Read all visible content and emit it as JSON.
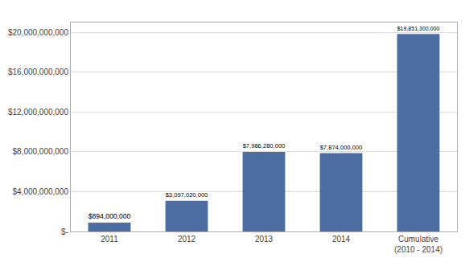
{
  "chart_data": {
    "type": "bar",
    "categories": [
      "2011",
      "2012",
      "2013",
      "2014",
      "Cumulative\n(2010 - 2014)"
    ],
    "values": [
      894000000,
      3097020000,
      7986280000,
      7874000000,
      19851300000
    ],
    "value_labels": [
      "$894,000,000",
      "$3,097,020,000",
      "$7,986,280,000",
      "$7,874,000,000",
      "$19,851,300,000"
    ],
    "data_labels": true,
    "color": "#4E6EA3",
    "ylim": [
      0,
      21000000000
    ],
    "yticks": [
      {
        "value": 0,
        "label": "$-"
      },
      {
        "value": 4000000000,
        "label": "$4,000,000,000"
      },
      {
        "value": 8000000000,
        "label": "$8,000,000,000"
      },
      {
        "value": 12000000000,
        "label": "$12,000,000,000"
      },
      {
        "value": 16000000000,
        "label": "$16,000,000,000"
      },
      {
        "value": 20000000000,
        "label": "$20,000,000,000"
      }
    ],
    "grid": true
  }
}
